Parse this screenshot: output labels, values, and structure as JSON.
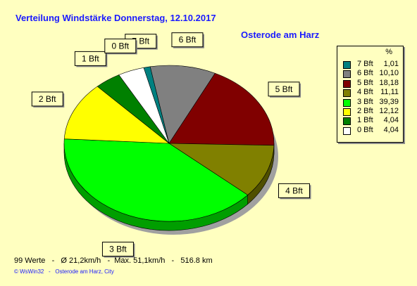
{
  "title": "Verteilung Windstärke  Donnerstag, 12.10.2017",
  "subtitle": "Osterode am Harz",
  "chart_data": {
    "type": "pie",
    "categories": [
      "7 Bft",
      "6 Bft",
      "5 Bft",
      "4 Bft",
      "3 Bft",
      "2 Bft",
      "1 Bft",
      "0 Bft"
    ],
    "values": [
      1.01,
      10.1,
      18.18,
      11.11,
      39.39,
      12.12,
      4.04,
      4.04
    ],
    "value_labels": [
      "1,01",
      "10,10",
      "18,18",
      "11,11",
      "39,39",
      "12,12",
      "4,04",
      "4,04"
    ],
    "colors": [
      "#008080",
      "#808080",
      "#800000",
      "#808000",
      "#00ff00",
      "#ffff00",
      "#008000",
      "#ffffff"
    ],
    "legend_header": "%",
    "legend_placement": "right"
  },
  "footer": {
    "stats": "99 Werte   -   Ø 21,2km/h   -  Max. 51,1km/h   -   516.8 km",
    "credit": "© WsWin32   -   Osterode am Harz, City"
  }
}
